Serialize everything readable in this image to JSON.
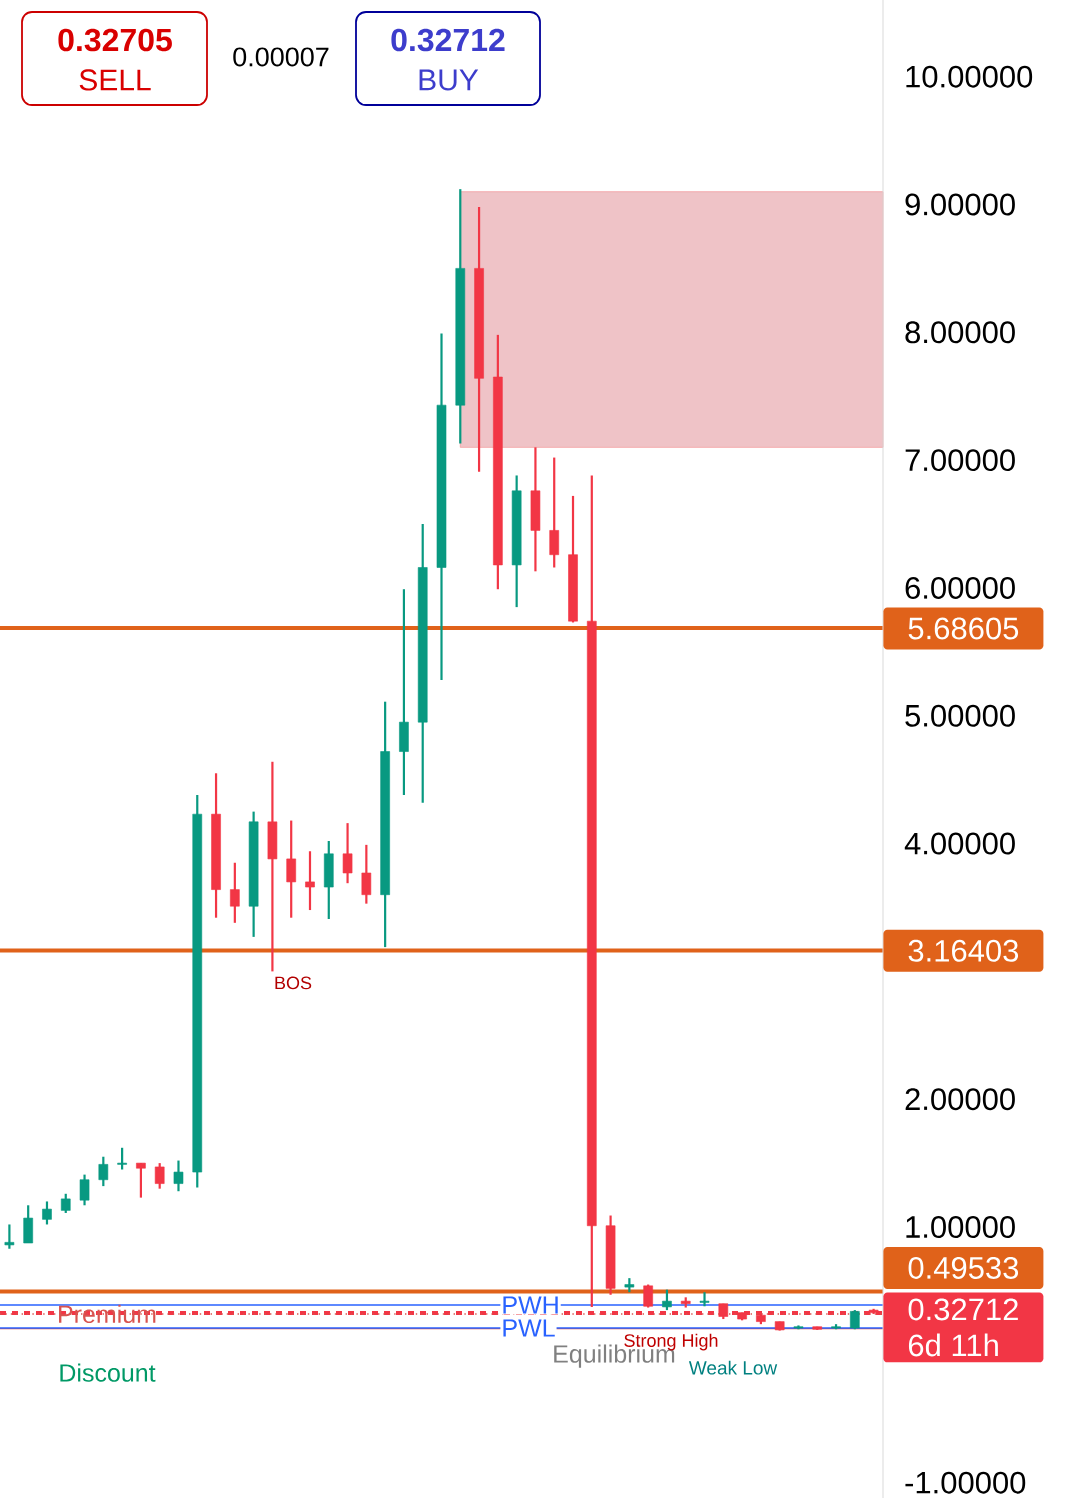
{
  "chart_data": {
    "type": "candlestick",
    "categories": [
      null,
      null,
      null,
      null,
      null,
      null,
      null,
      null,
      null,
      null,
      null,
      null,
      null,
      null,
      null,
      null,
      null,
      null,
      null,
      null,
      null,
      null,
      null,
      null,
      null,
      null,
      null,
      null,
      null,
      null,
      null,
      null,
      null,
      null,
      null,
      null,
      null,
      null,
      null,
      null,
      null,
      null,
      null,
      null,
      null,
      null,
      null
    ],
    "ohlc": [
      [
        0.86,
        1.02,
        0.83,
        0.88
      ],
      [
        0.875,
        1.17,
        0.875,
        1.07
      ],
      [
        1.06,
        1.2,
        1.02,
        1.14
      ],
      [
        1.13,
        1.26,
        1.11,
        1.22
      ],
      [
        1.21,
        1.41,
        1.17,
        1.37
      ],
      [
        1.37,
        1.55,
        1.32,
        1.49
      ],
      [
        1.49,
        1.62,
        1.45,
        1.5
      ],
      [
        1.5,
        1.5,
        1.23,
        1.46
      ],
      [
        1.47,
        1.5,
        1.3,
        1.34
      ],
      [
        1.34,
        1.52,
        1.28,
        1.43
      ],
      [
        1.43,
        4.38,
        1.31,
        4.23
      ],
      [
        4.23,
        4.55,
        3.42,
        3.64
      ],
      [
        3.64,
        3.85,
        3.38,
        3.51
      ],
      [
        3.51,
        4.25,
        3.27,
        4.17
      ],
      [
        4.17,
        4.64,
        3.0,
        3.88
      ],
      [
        3.88,
        4.18,
        3.42,
        3.7
      ],
      [
        3.7,
        3.94,
        3.48,
        3.66
      ],
      [
        3.66,
        4.02,
        3.41,
        3.92
      ],
      [
        3.92,
        4.16,
        3.69,
        3.77
      ],
      [
        3.77,
        3.99,
        3.53,
        3.6
      ],
      [
        3.6,
        5.11,
        3.19,
        4.72
      ],
      [
        4.72,
        5.99,
        4.38,
        4.95
      ],
      [
        4.95,
        6.5,
        4.32,
        6.16
      ],
      [
        6.16,
        7.99,
        5.28,
        7.43
      ],
      [
        7.43,
        9.12,
        7.13,
        8.5
      ],
      [
        8.5,
        8.98,
        6.91,
        7.64
      ],
      [
        7.65,
        7.98,
        5.99,
        6.18
      ],
      [
        6.18,
        6.88,
        5.85,
        6.76
      ],
      [
        6.76,
        7.1,
        6.13,
        6.45
      ],
      [
        6.45,
        7.02,
        6.16,
        6.26
      ],
      [
        6.26,
        6.72,
        5.73,
        5.74
      ],
      [
        5.74,
        6.88,
        0.375,
        1.01
      ],
      [
        1.01,
        1.09,
        0.47,
        0.52
      ],
      [
        0.53,
        0.6,
        0.49,
        0.55
      ],
      [
        0.54,
        0.55,
        0.37,
        0.38
      ],
      [
        0.375,
        0.51,
        0.35,
        0.42
      ],
      [
        0.42,
        0.45,
        0.37,
        0.4
      ],
      [
        0.41,
        0.49,
        0.38,
        0.42
      ],
      [
        0.4,
        0.4,
        0.28,
        0.3
      ],
      [
        0.33,
        0.33,
        0.27,
        0.28
      ],
      [
        0.31,
        0.32,
        0.24,
        0.26
      ],
      [
        0.26,
        0.26,
        0.19,
        0.195
      ],
      [
        0.21,
        0.23,
        0.2,
        0.22
      ],
      [
        0.22,
        0.22,
        0.195,
        0.2
      ],
      [
        0.21,
        0.24,
        0.2,
        0.22
      ],
      [
        0.21,
        0.35,
        0.2,
        0.34
      ],
      [
        0.35,
        0.36,
        0.32,
        0.33
      ]
    ],
    "colors": [
      "#089981",
      "#089981",
      "#089981",
      "#089981",
      "#089981",
      "#089981",
      "#089981",
      "#f23645",
      "#f23645",
      "#089981",
      "#089981",
      "#f23645",
      "#f23645",
      "#089981",
      "#f23645",
      "#f23645",
      "#f23645",
      "#089981",
      "#f23645",
      "#f23645",
      "#089981",
      "#089981",
      "#089981",
      "#089981",
      "#089981",
      "#f23645",
      "#f23645",
      "#089981",
      "#f23645",
      "#f23645",
      "#f23645",
      "#f23645",
      "#f23645",
      "#089981",
      "#f23645",
      "#089981",
      "#f23645",
      "#089981",
      "#f23645",
      "#f23645",
      "#f23645",
      "#f23645",
      "#089981",
      "#f23645",
      "#089981",
      "#089981",
      "#f23645"
    ],
    "ylim": [
      -1.12,
      10.6
    ],
    "yticks": [
      {
        "value": -1,
        "label": "-1.00000"
      },
      {
        "value": 1,
        "label": "1.00000"
      },
      {
        "value": 2,
        "label": "2.00000"
      },
      {
        "value": 4,
        "label": "4.00000"
      },
      {
        "value": 5,
        "label": "5.00000"
      },
      {
        "value": 6,
        "label": "6.00000"
      },
      {
        "value": 7,
        "label": "7.00000"
      },
      {
        "value": 8,
        "label": "8.00000"
      },
      {
        "value": 9,
        "label": "9.00000"
      },
      {
        "value": 10,
        "label": "10.00000"
      }
    ],
    "ref_lines": [
      {
        "axis": "y",
        "value": 5.68605,
        "label": "5.68605",
        "color": "#e0621a"
      },
      {
        "axis": "y",
        "value": 3.16403,
        "label": "3.16403",
        "color": "#e0621a"
      },
      {
        "axis": "y",
        "value": 0.49533,
        "label": "0.49533",
        "color": "#e0621a"
      },
      {
        "axis": "y",
        "value": 0.32712,
        "label": "0.32712",
        "color": "#f23645",
        "line_style": "dashed"
      },
      {
        "axis": "y",
        "value": 0.32,
        "label": "Premium",
        "color": "#d9534f",
        "line_style": "dotted"
      },
      {
        "axis": "y",
        "value": 0.205,
        "label": "Discount",
        "color": "#d9534f"
      },
      {
        "axis": "y",
        "value": 0.39,
        "label": "PWH",
        "color": "#2962ff"
      },
      {
        "axis": "y",
        "value": 0.21,
        "label": "PWL",
        "color": "#2962ff"
      }
    ],
    "bands": [
      {
        "axis": "y",
        "from": 7.1,
        "to": 9.1,
        "color": "#efc3c7"
      }
    ],
    "annotations": [
      "0.32705",
      "SELL",
      "0.00007",
      "0.32712",
      "BUY",
      "6d 11h",
      "BOS",
      "Equilibrium",
      "Weak Low",
      "Strong High"
    ]
  }
}
